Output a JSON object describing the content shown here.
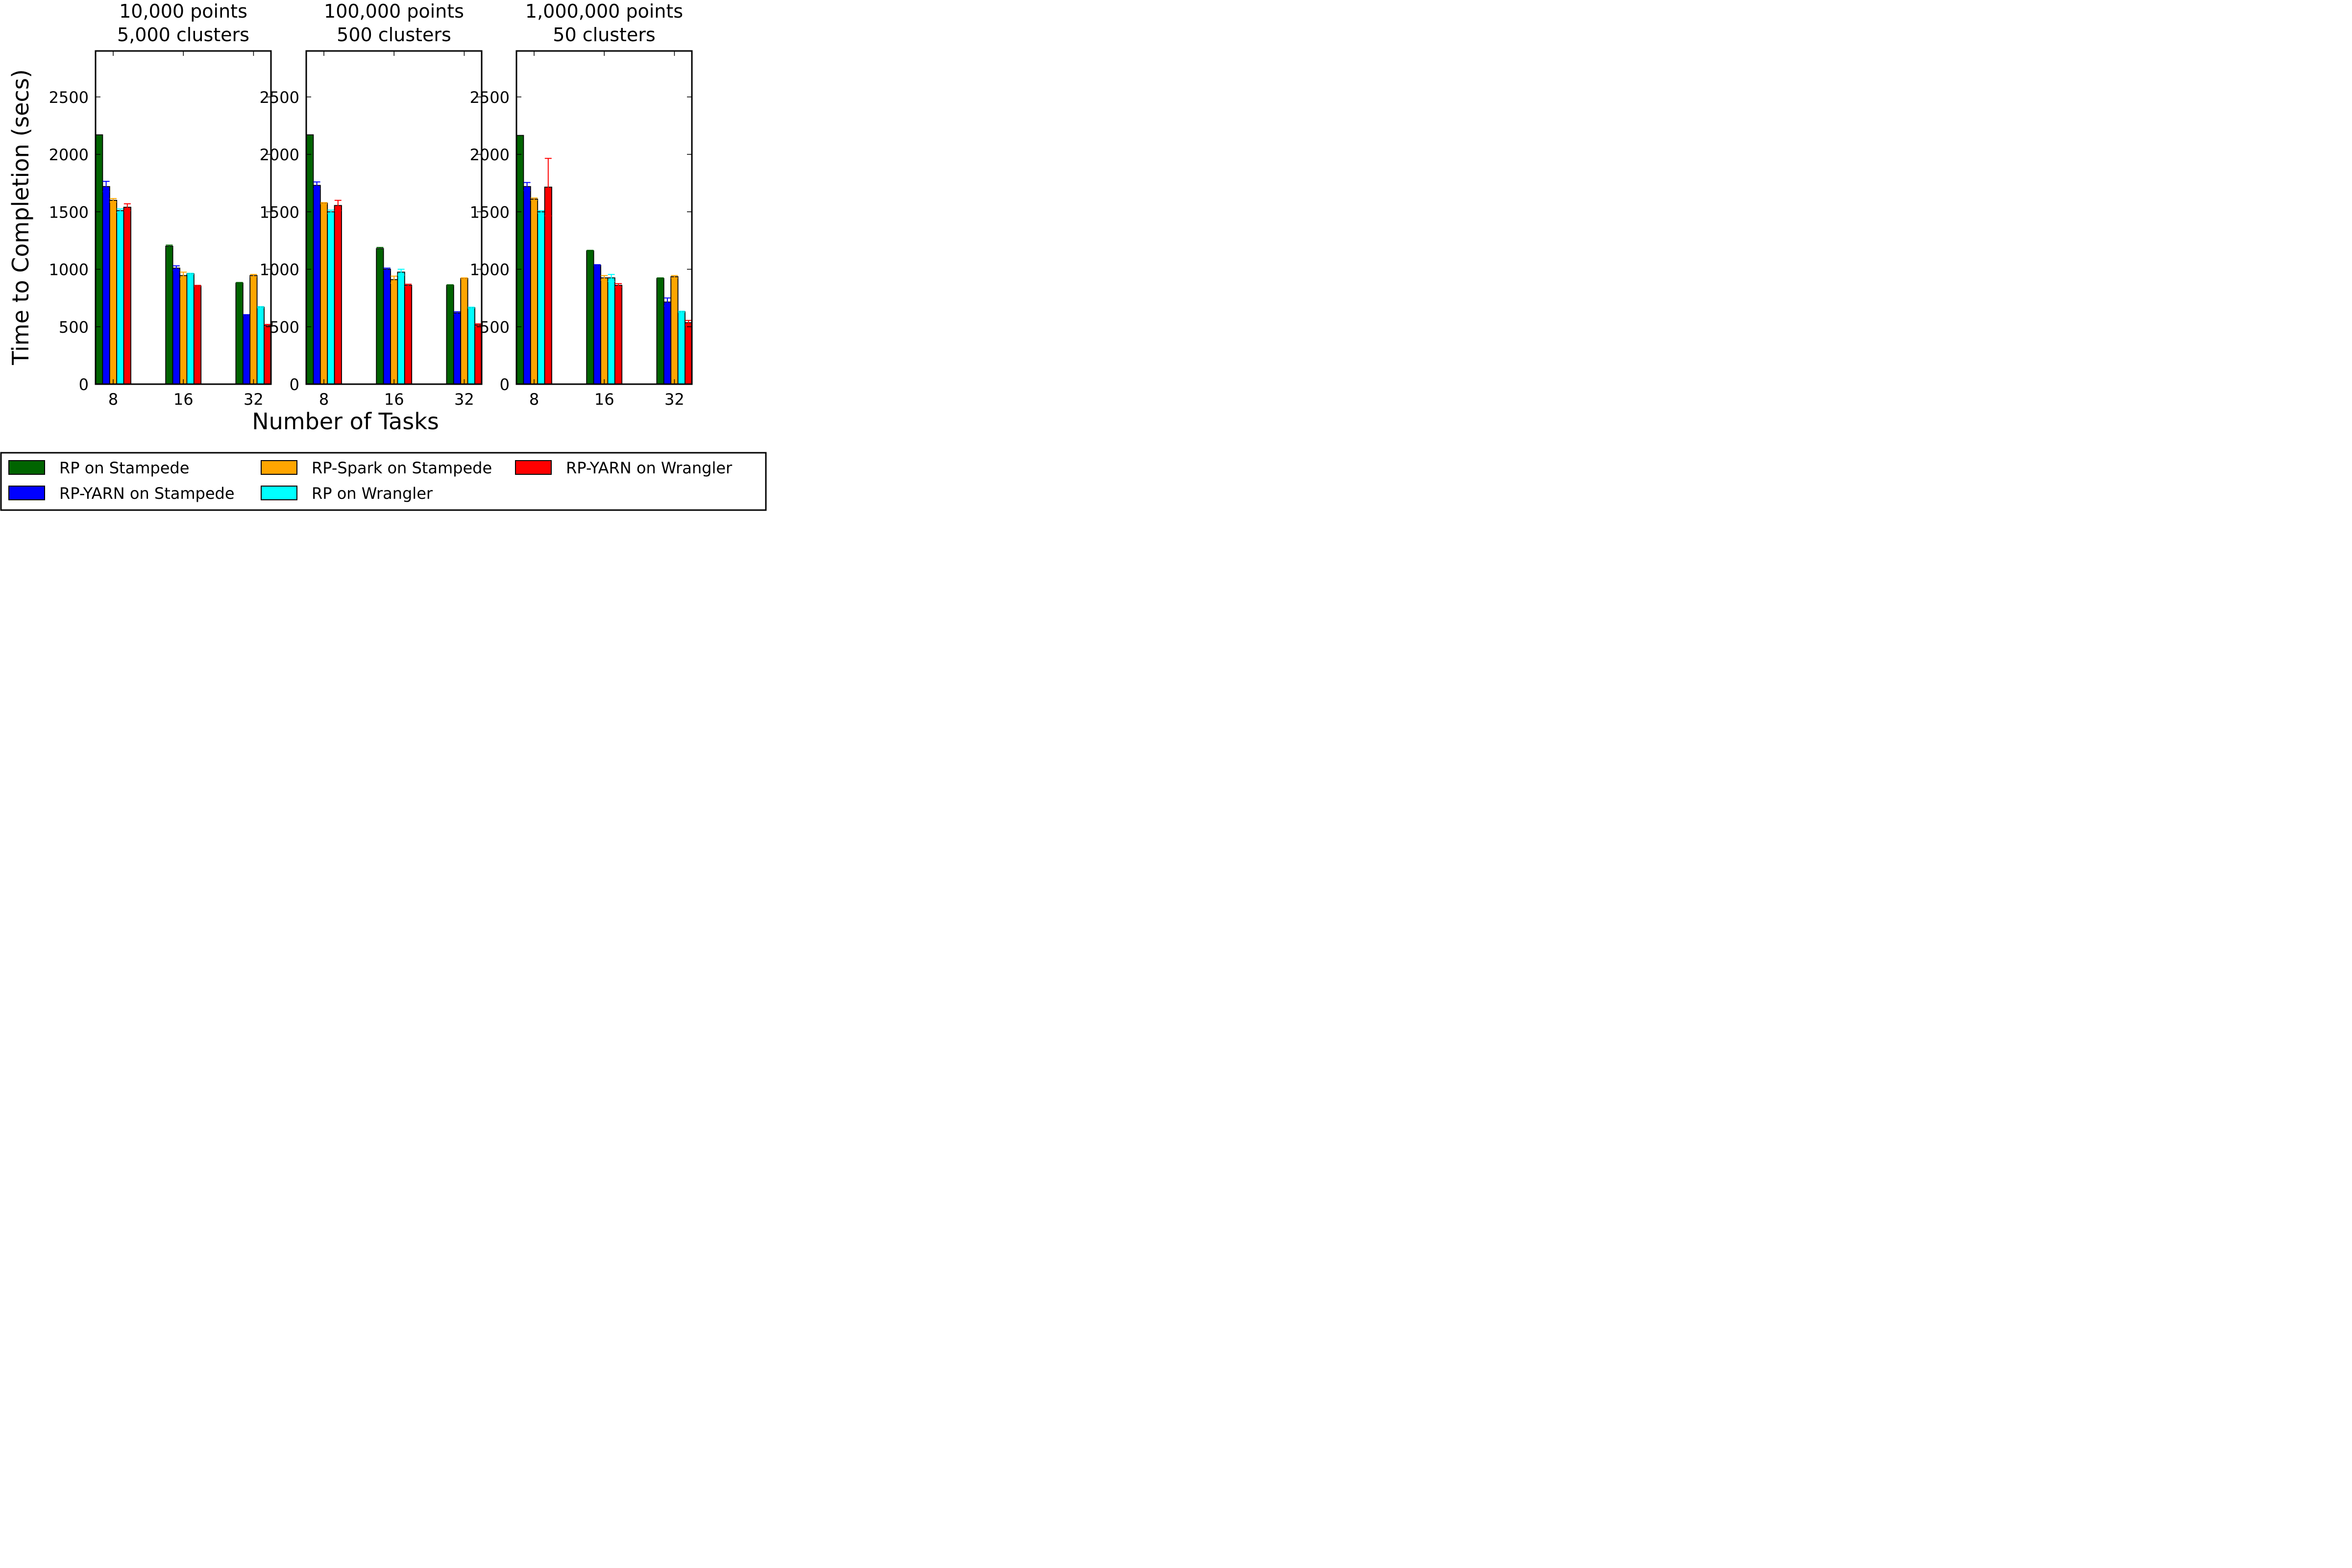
{
  "figure": {
    "ylabel": "Time to Completion (secs)",
    "xlabel": "Number of Tasks"
  },
  "series": [
    {
      "name": "RP on Stampede",
      "color": "#006400"
    },
    {
      "name": "RP-YARN on Stampede",
      "color": "#0000ff"
    },
    {
      "name": "RP-Spark on Stampede",
      "color": "#ffa500"
    },
    {
      "name": "RP on Wrangler",
      "color": "#00ffff"
    },
    {
      "name": "RP-YARN on Wrangler",
      "color": "#ff0000"
    }
  ],
  "chart_data": [
    {
      "type": "bar",
      "title": "10,000 points\n5,000 clusters",
      "title_lines": [
        "10,000 points",
        "5,000 clusters"
      ],
      "categories": [
        "8",
        "16",
        "32"
      ],
      "ylim": [
        0,
        2900
      ],
      "yticks": [
        0,
        500,
        1000,
        1500,
        2000,
        2500
      ],
      "series": [
        {
          "name": "RP on Stampede",
          "values": [
            2170,
            1200,
            880
          ]
        },
        {
          "name": "RP-YARN on Stampede",
          "values": [
            1720,
            1010,
            600
          ]
        },
        {
          "name": "RP-Spark on Stampede",
          "values": [
            1600,
            945,
            945
          ]
        },
        {
          "name": "RP on Wrangler",
          "values": [
            1510,
            960,
            670
          ]
        },
        {
          "name": "RP-YARN on Wrangler",
          "values": [
            1540,
            855,
            510
          ]
        }
      ],
      "errors": [
        {
          "series": "RP on Stampede",
          "values": [
            0,
            10,
            5
          ]
        },
        {
          "series": "RP-YARN on Stampede",
          "values": [
            45,
            20,
            5
          ]
        },
        {
          "series": "RP-Spark on Stampede",
          "values": [
            15,
            30,
            10
          ]
        },
        {
          "series": "RP on Wrangler",
          "values": [
            15,
            5,
            5
          ]
        },
        {
          "series": "RP-YARN on Wrangler",
          "values": [
            30,
            5,
            10
          ]
        }
      ]
    },
    {
      "type": "bar",
      "title": "100,000 points\n500 clusters",
      "title_lines": [
        "100,000 points",
        "500 clusters"
      ],
      "categories": [
        "8",
        "16",
        "32"
      ],
      "ylim": [
        0,
        2900
      ],
      "yticks": [
        0,
        500,
        1000,
        1500,
        2000,
        2500
      ],
      "series": [
        {
          "name": "RP on Stampede",
          "values": [
            2170,
            1180,
            860
          ]
        },
        {
          "name": "RP-YARN on Stampede",
          "values": [
            1730,
            1000,
            620
          ]
        },
        {
          "name": "RP-Spark on Stampede",
          "values": [
            1575,
            910,
            920
          ]
        },
        {
          "name": "RP on Wrangler",
          "values": [
            1500,
            975,
            665
          ]
        },
        {
          "name": "RP-YARN on Wrangler",
          "values": [
            1555,
            860,
            515
          ]
        }
      ],
      "errors": [
        {
          "series": "RP on Stampede",
          "values": [
            0,
            10,
            5
          ]
        },
        {
          "series": "RP-YARN on Stampede",
          "values": [
            30,
            10,
            10
          ]
        },
        {
          "series": "RP-Spark on Stampede",
          "values": [
            5,
            30,
            5
          ]
        },
        {
          "series": "RP on Wrangler",
          "values": [
            15,
            25,
            5
          ]
        },
        {
          "series": "RP-YARN on Wrangler",
          "values": [
            45,
            10,
            10
          ]
        }
      ]
    },
    {
      "type": "bar",
      "title": "1,000,000 points\n50 clusters",
      "title_lines": [
        "1,000,000 points",
        "50 clusters"
      ],
      "categories": [
        "8",
        "16",
        "32"
      ],
      "ylim": [
        0,
        2900
      ],
      "yticks": [
        0,
        500,
        1000,
        1500,
        2000,
        2500
      ],
      "series": [
        {
          "name": "RP on Stampede",
          "values": [
            2165,
            1160,
            920
          ]
        },
        {
          "name": "RP-YARN on Stampede",
          "values": [
            1720,
            1035,
            715
          ]
        },
        {
          "name": "RP-Spark on Stampede",
          "values": [
            1610,
            925,
            935
          ]
        },
        {
          "name": "RP on Wrangler",
          "values": [
            1500,
            925,
            630
          ]
        },
        {
          "name": "RP-YARN on Wrangler",
          "values": [
            1715,
            860,
            535
          ]
        }
      ],
      "errors": [
        {
          "series": "RP on Stampede",
          "values": [
            0,
            5,
            5
          ]
        },
        {
          "series": "RP-YARN on Stampede",
          "values": [
            35,
            5,
            35
          ]
        },
        {
          "series": "RP-Spark on Stampede",
          "values": [
            10,
            20,
            10
          ]
        },
        {
          "series": "RP on Wrangler",
          "values": [
            10,
            30,
            5
          ]
        },
        {
          "series": "RP-YARN on Wrangler",
          "values": [
            250,
            15,
            20
          ]
        }
      ]
    }
  ]
}
